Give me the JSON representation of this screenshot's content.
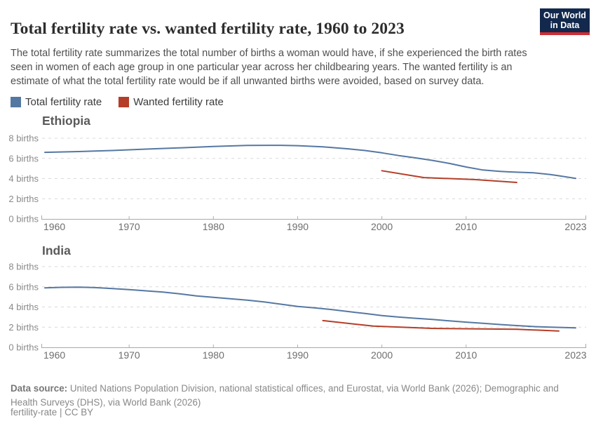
{
  "header": {
    "title": "Total fertility rate vs. wanted fertility rate, 1960 to 2023",
    "subtitle": "The total fertility rate summarizes the total number of births a woman would have, if she experienced the birth rates seen in women of each age group in one particular year across her childbearing years. The wanted fertility is an estimate of what the total fertility rate would be if all unwanted births were avoided, based on survey data.",
    "logo": {
      "line1": "Our World",
      "line2": "in Data",
      "bg": "#12294d",
      "accent": "#cf2d33"
    }
  },
  "legend": [
    {
      "label": "Total fertility rate",
      "color": "#5578a2"
    },
    {
      "label": "Wanted fertility rate",
      "color": "#b43e28"
    }
  ],
  "colors": {
    "grid": "#d9d9d9",
    "axis": "#a8a8a8",
    "tick": "#b0b0b0",
    "ytick_text": "#8a8a8a",
    "xtick_text": "#6e6e6e"
  },
  "chart_data": [
    {
      "type": "line",
      "title": "Ethiopia",
      "xlabel": "",
      "ylabel": "births",
      "xlim": [
        1960,
        2023
      ],
      "ylim": [
        0,
        8
      ],
      "yticks": [
        0,
        2,
        4,
        6,
        8
      ],
      "ytick_suffix": " births",
      "xticks": [
        1960,
        1970,
        1980,
        1990,
        2000,
        2010,
        2023
      ],
      "grid": true,
      "legend_position": "top-left",
      "series": [
        {
          "name": "Total fertility rate",
          "color": "#5578a2",
          "points": [
            [
              1960,
              6.6
            ],
            [
              1964,
              6.68
            ],
            [
              1968,
              6.78
            ],
            [
              1972,
              6.92
            ],
            [
              1976,
              7.05
            ],
            [
              1980,
              7.18
            ],
            [
              1984,
              7.28
            ],
            [
              1988,
              7.3
            ],
            [
              1990,
              7.26
            ],
            [
              1993,
              7.15
            ],
            [
              1996,
              6.95
            ],
            [
              1998,
              6.78
            ],
            [
              2000,
              6.55
            ],
            [
              2002,
              6.28
            ],
            [
              2004,
              6.05
            ],
            [
              2006,
              5.8
            ],
            [
              2008,
              5.5
            ],
            [
              2010,
              5.15
            ],
            [
              2012,
              4.85
            ],
            [
              2014,
              4.72
            ],
            [
              2015,
              4.67
            ],
            [
              2016,
              4.63
            ],
            [
              2018,
              4.57
            ],
            [
              2020,
              4.4
            ],
            [
              2021,
              4.28
            ],
            [
              2023,
              4.02
            ]
          ]
        },
        {
          "name": "Wanted fertility rate",
          "color": "#b43e28",
          "points": [
            [
              2000,
              4.78
            ],
            [
              2005,
              4.1
            ],
            [
              2011,
              3.9
            ],
            [
              2016,
              3.62
            ]
          ]
        }
      ]
    },
    {
      "type": "line",
      "title": "India",
      "xlabel": "",
      "ylabel": "births",
      "xlim": [
        1960,
        2023
      ],
      "ylim": [
        0,
        8
      ],
      "yticks": [
        0,
        2,
        4,
        6,
        8
      ],
      "ytick_suffix": " births",
      "xticks": [
        1960,
        1970,
        1980,
        1990,
        2000,
        2010,
        2023
      ],
      "grid": true,
      "legend_position": "top-left",
      "series": [
        {
          "name": "Total fertility rate",
          "color": "#5578a2",
          "points": [
            [
              1960,
              5.9
            ],
            [
              1962,
              5.95
            ],
            [
              1964,
              5.97
            ],
            [
              1966,
              5.92
            ],
            [
              1968,
              5.82
            ],
            [
              1970,
              5.72
            ],
            [
              1972,
              5.6
            ],
            [
              1974,
              5.48
            ],
            [
              1976,
              5.3
            ],
            [
              1978,
              5.1
            ],
            [
              1980,
              4.95
            ],
            [
              1982,
              4.82
            ],
            [
              1984,
              4.68
            ],
            [
              1986,
              4.5
            ],
            [
              1988,
              4.28
            ],
            [
              1990,
              4.05
            ],
            [
              1992,
              3.92
            ],
            [
              1994,
              3.75
            ],
            [
              1996,
              3.55
            ],
            [
              1998,
              3.35
            ],
            [
              2000,
              3.15
            ],
            [
              2002,
              3.0
            ],
            [
              2004,
              2.88
            ],
            [
              2006,
              2.76
            ],
            [
              2008,
              2.62
            ],
            [
              2010,
              2.5
            ],
            [
              2012,
              2.38
            ],
            [
              2014,
              2.26
            ],
            [
              2016,
              2.16
            ],
            [
              2018,
              2.06
            ],
            [
              2020,
              2.0
            ],
            [
              2023,
              1.93
            ]
          ]
        },
        {
          "name": "Wanted fertility rate",
          "color": "#b43e28",
          "points": [
            [
              1993,
              2.65
            ],
            [
              1999,
              2.1
            ],
            [
              2006,
              1.88
            ],
            [
              2016,
              1.79
            ],
            [
              2021,
              1.62
            ]
          ]
        }
      ]
    }
  ],
  "footer": {
    "source_label": "Data source:",
    "source_text": " United Nations Population Division, national statistical offices, and Eurostat, via World Bank (2026); Demographic and Health Surveys (DHS), via World Bank (2026)",
    "license": "fertility-rate | CC BY"
  }
}
